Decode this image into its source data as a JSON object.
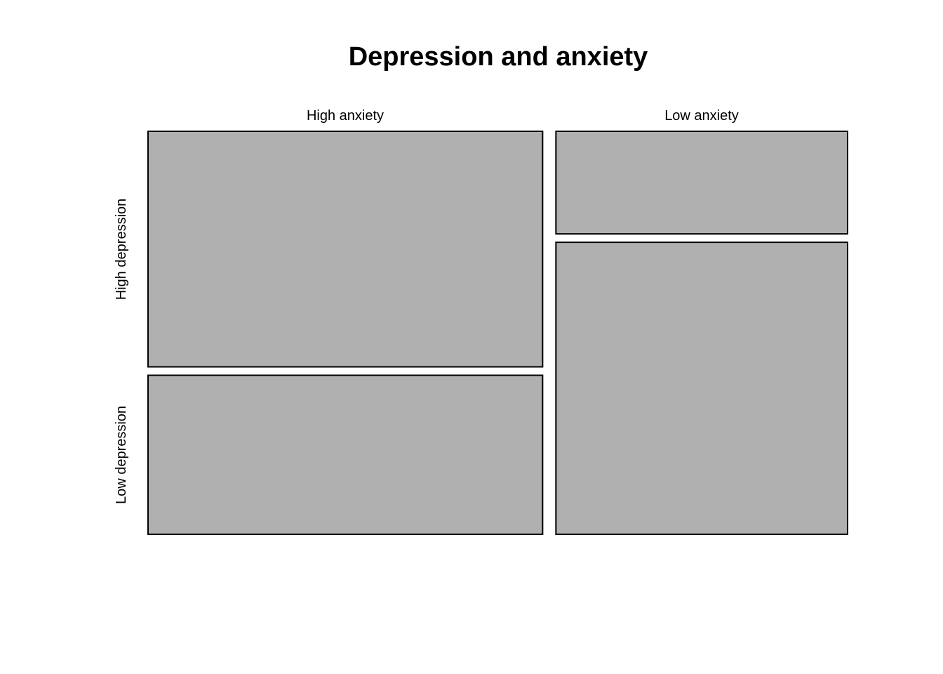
{
  "chart_data": {
    "type": "mosaic",
    "title": "Depression and anxiety",
    "columns": [
      "High anxiety",
      "Low anxiety"
    ],
    "rows": [
      "High depression",
      "Low depression"
    ],
    "column_proportions": [
      0.575,
      0.425
    ],
    "row_proportions_within_column": [
      {
        "column": "High anxiety",
        "values": [
          0.597,
          0.403
        ]
      },
      {
        "column": "Low anxiety",
        "values": [
          0.26,
          0.74
        ]
      }
    ],
    "fill_color": "#b0b0b0",
    "stroke_color": "#000000"
  }
}
